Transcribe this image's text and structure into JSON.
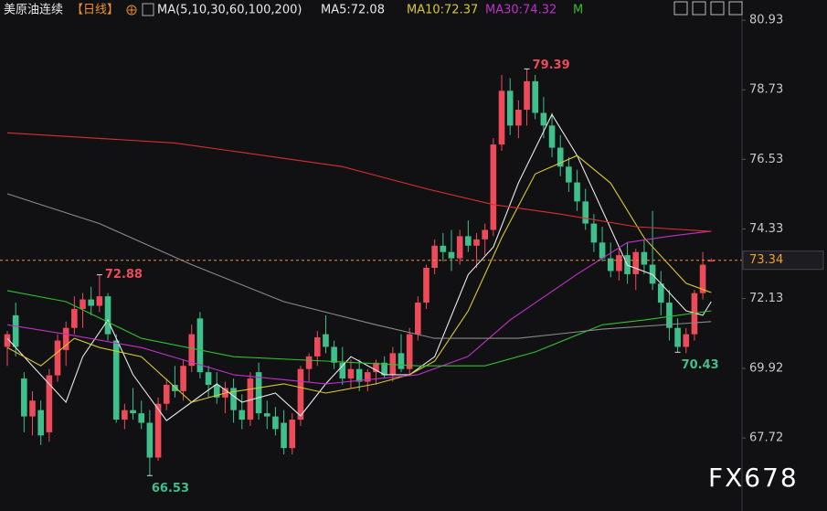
{
  "header": {
    "symbol": "美原油连续",
    "period": "【日线】",
    "indicator": "MA(5,10,30,60,100,200)",
    "legend_labels": [
      "MA5:72.08",
      "MA10:72.37",
      "MA30:74.32",
      "M"
    ]
  },
  "watermark": "FX678",
  "chart_data": {
    "type": "candlestick",
    "up_color": "#ee4b5a",
    "down_color": "#3fbf8c",
    "open": [
      70.6,
      71.6,
      69.6,
      68.4,
      68.6,
      67.9,
      69.7,
      70.5,
      71.2,
      71.8,
      72.1,
      71.9,
      72.2,
      70.8,
      68.3,
      68.6,
      68.5,
      68.2,
      67.1,
      68.8,
      69.4,
      69.2,
      70.0,
      71.5,
      69.8,
      69.4,
      69.0,
      69.3,
      68.6,
      68.3,
      69.8,
      68.5,
      68.4,
      68.2,
      67.4,
      68.3,
      69.9,
      70.3,
      71.0,
      70.6,
      70.1,
      69.6,
      69.9,
      69.5,
      69.8,
      70.1,
      69.7,
      70.4,
      69.9,
      71.0,
      72.0,
      73.1,
      73.8,
      73.6,
      73.4,
      74.1,
      73.8,
      74.0,
      74.3,
      77.0,
      78.7,
      77.6,
      78.1,
      79.0,
      78.0,
      77.6,
      76.9,
      76.3,
      75.8,
      75.2,
      74.5,
      73.9,
      73.4,
      73.0,
      73.5,
      72.9,
      73.6,
      73.2,
      72.6,
      72.0,
      71.2,
      70.6,
      71.0,
      72.3,
      73.3
    ],
    "high": [
      71.1,
      72.0,
      69.8,
      69.2,
      68.9,
      69.9,
      71.0,
      71.4,
      72.2,
      72.3,
      72.5,
      72.88,
      72.3,
      71.0,
      68.8,
      69.3,
      68.9,
      68.6,
      69.0,
      69.6,
      70.0,
      70.2,
      71.3,
      71.7,
      70.0,
      69.8,
      69.5,
      69.6,
      69.1,
      69.8,
      70.1,
      68.9,
      68.7,
      68.6,
      68.5,
      70.0,
      70.4,
      71.1,
      71.6,
      70.8,
      70.6,
      70.2,
      70.2,
      69.9,
      70.2,
      70.3,
      70.6,
      71.0,
      71.2,
      72.2,
      73.2,
      74.0,
      74.2,
      74.3,
      74.3,
      74.6,
      74.2,
      74.5,
      77.2,
      79.2,
      79.1,
      78.4,
      79.39,
      79.2,
      78.5,
      78.0,
      77.3,
      76.6,
      76.2,
      75.6,
      74.8,
      74.4,
      73.9,
      73.7,
      73.9,
      73.7,
      74.0,
      74.9,
      73.0,
      72.4,
      71.5,
      71.2,
      72.4,
      73.6,
      73.4
    ],
    "low": [
      70.0,
      70.3,
      67.9,
      67.8,
      67.5,
      67.6,
      69.5,
      70.0,
      71.0,
      71.2,
      71.6,
      71.7,
      70.8,
      68.2,
      68.0,
      68.3,
      68.0,
      66.53,
      67.0,
      68.6,
      69.0,
      68.9,
      69.8,
      69.6,
      69.0,
      68.8,
      68.5,
      68.2,
      68.0,
      68.1,
      68.3,
      68.0,
      67.8,
      67.2,
      67.2,
      68.1,
      69.5,
      70.0,
      70.4,
      69.9,
      69.4,
      69.3,
      69.2,
      69.2,
      69.4,
      69.6,
      69.5,
      69.8,
      69.7,
      70.8,
      71.8,
      72.9,
      73.3,
      73.0,
      73.2,
      73.6,
      73.1,
      73.5,
      74.1,
      76.8,
      77.3,
      77.2,
      77.6,
      77.8,
      77.2,
      76.6,
      76.0,
      75.5,
      74.9,
      74.3,
      73.6,
      73.3,
      72.8,
      72.7,
      72.6,
      72.4,
      72.9,
      72.4,
      71.6,
      70.8,
      70.43,
      70.4,
      70.8,
      72.1,
      73.3
    ],
    "close": [
      71.0,
      70.6,
      68.4,
      68.9,
      67.8,
      69.7,
      70.8,
      71.2,
      71.8,
      72.1,
      71.9,
      72.2,
      71.0,
      68.3,
      68.6,
      68.5,
      68.2,
      67.1,
      68.8,
      69.4,
      69.2,
      70.0,
      71.0,
      69.8,
      69.4,
      69.0,
      69.3,
      68.6,
      68.3,
      69.6,
      68.5,
      68.4,
      68.0,
      67.4,
      68.3,
      69.9,
      70.3,
      70.9,
      70.6,
      70.1,
      69.6,
      69.9,
      69.5,
      69.8,
      70.1,
      69.7,
      70.4,
      69.9,
      71.0,
      72.0,
      73.1,
      73.8,
      73.6,
      73.4,
      74.1,
      73.8,
      74.0,
      74.3,
      77.0,
      78.7,
      77.6,
      78.1,
      79.0,
      78.0,
      77.6,
      76.9,
      76.3,
      75.8,
      75.2,
      74.5,
      73.9,
      73.4,
      73.0,
      73.5,
      72.9,
      73.6,
      73.2,
      72.6,
      72.0,
      71.2,
      70.6,
      71.0,
      72.3,
      73.2,
      73.34
    ],
    "ma_series": [
      {
        "name": "MA5",
        "color": "#e8e8e8",
        "x": [
          0,
          3,
          7,
          9,
          12,
          15,
          19,
          22,
          25,
          28,
          32,
          35,
          38,
          41,
          45,
          48,
          51,
          55,
          58,
          61,
          65,
          68,
          71,
          74,
          77,
          81,
          83,
          84
        ],
        "values": [
          70.87,
          70.0,
          68.85,
          70.29,
          71.45,
          69.72,
          68.27,
          68.85,
          69.43,
          68.85,
          69.14,
          68.42,
          69.43,
          70.29,
          69.72,
          69.72,
          70.29,
          72.89,
          73.76,
          75.79,
          77.95,
          76.65,
          74.92,
          73.18,
          72.89,
          71.74,
          71.6,
          72.03
        ]
      },
      {
        "name": "MA10",
        "color": "#d8c830",
        "x": [
          0,
          4,
          8,
          11,
          16,
          22,
          26,
          33,
          38,
          44,
          48,
          51,
          55,
          59,
          63,
          68,
          72,
          76,
          81,
          84
        ],
        "values": [
          70.58,
          70.0,
          70.87,
          70.58,
          70.29,
          68.85,
          69.14,
          69.43,
          69.14,
          69.43,
          69.72,
          70.15,
          71.74,
          74.05,
          76.07,
          76.65,
          75.78,
          74.05,
          72.61,
          72.32
        ]
      },
      {
        "name": "MA30",
        "color": "#c030c8",
        "x": [
          0,
          7,
          16,
          27,
          38,
          49,
          55,
          60,
          68,
          74,
          79,
          84
        ],
        "values": [
          71.3,
          71.0,
          70.58,
          69.72,
          69.43,
          69.72,
          70.3,
          71.45,
          72.9,
          73.9,
          74.1,
          74.26
        ]
      },
      {
        "name": "MA60",
        "color": "#30c030",
        "x": [
          0,
          7,
          16,
          27,
          38,
          49,
          57,
          63,
          71,
          76,
          84
        ],
        "values": [
          72.38,
          72.03,
          70.87,
          70.29,
          70.15,
          70.0,
          70.0,
          70.44,
          71.3,
          71.45,
          71.74
        ]
      },
      {
        "name": "MA100",
        "color": "#8a8a8a",
        "x": [
          0,
          11,
          22,
          33,
          44,
          51,
          61,
          71,
          84
        ],
        "values": [
          75.44,
          74.5,
          73.2,
          72.03,
          71.3,
          70.87,
          70.87,
          71.16,
          71.4
        ]
      },
      {
        "name": "MA200",
        "color": "#d83030",
        "x": [
          0,
          20,
          40,
          50,
          58,
          66,
          75,
          84
        ],
        "values": [
          77.37,
          77.05,
          76.3,
          75.6,
          75.1,
          74.8,
          74.4,
          74.25
        ]
      }
    ],
    "last_price": 73.34,
    "ylim": [
      65.41,
      81.57
    ],
    "yticks": [
      80.93,
      78.73,
      76.53,
      74.33,
      72.13,
      69.92,
      67.72
    ]
  }
}
